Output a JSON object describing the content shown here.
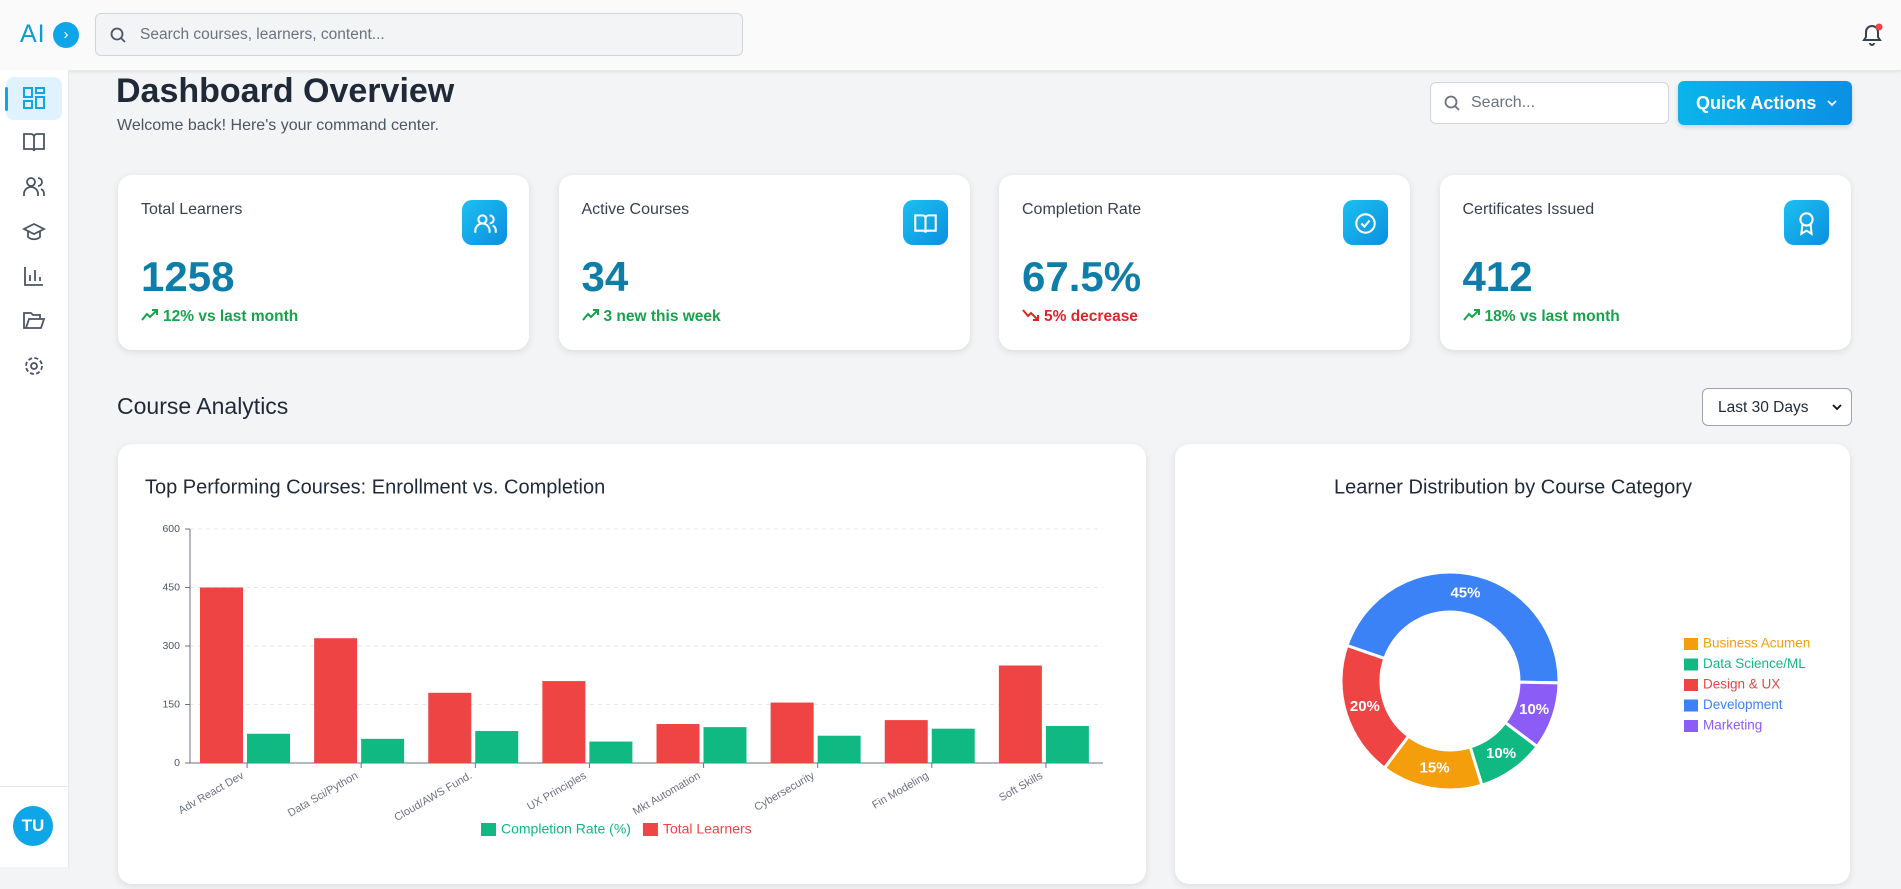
{
  "topbar": {
    "logo": "AI",
    "search_placeholder": "Search courses, learners, content..."
  },
  "sidebar": {
    "avatar": "TU"
  },
  "header": {
    "title": "Dashboard Overview",
    "subtitle": "Welcome back! Here's your command center.",
    "search_placeholder": "Search...",
    "button": "Quick Actions"
  },
  "stats": [
    {
      "label": "Total Learners",
      "value": 1258,
      "change": "12% vs last month",
      "trend": "up"
    },
    {
      "label": "Active Courses",
      "value": 34,
      "change": "3 new this week",
      "trend": "up"
    },
    {
      "label": "Completion Rate",
      "value": "67.5%",
      "change": "5% decrease",
      "trend": "down"
    },
    {
      "label": "Certificates Issued",
      "value": 412,
      "change": "18% vs last month",
      "trend": "up"
    }
  ],
  "analytics": {
    "title": "Course Analytics",
    "range": "Last 30 Days"
  },
  "bar_chart": {
    "type": "bar",
    "title": "Top Performing Courses: Enrollment vs. Completion",
    "categories": [
      "Adv React Dev",
      "Data Sci/Python",
      "Cloud/AWS Fund.",
      "UX Principles",
      "Mkt Automation",
      "Cybersecurity",
      "Fin Modeling",
      "Soft Skills"
    ],
    "series": [
      {
        "name": "Total Learners",
        "color": "#ef4444",
        "values": [
          450,
          320,
          180,
          210,
          100,
          155,
          110,
          250
        ]
      },
      {
        "name": "Completion Rate (%)",
        "color": "#10b981",
        "values": [
          75,
          62,
          82,
          55,
          92,
          70,
          88,
          95
        ]
      }
    ],
    "ylim": [
      0,
      600
    ],
    "yticks": [
      0,
      150,
      300,
      450,
      600
    ],
    "grid": true
  },
  "donut_chart": {
    "type": "pie",
    "title": "Learner Distribution by Course Category",
    "labels": [
      "Development",
      "Marketing",
      "Data Science/ML",
      "Business Acumen",
      "Design & UX"
    ],
    "values": [
      45,
      10,
      10,
      15,
      20
    ],
    "value_labels": [
      "45%",
      "10%",
      "10%",
      "15%",
      "20%"
    ],
    "colors": [
      "#3b82f6",
      "#8b5cf6",
      "#10b981",
      "#f59e0b",
      "#ef4444"
    ]
  }
}
